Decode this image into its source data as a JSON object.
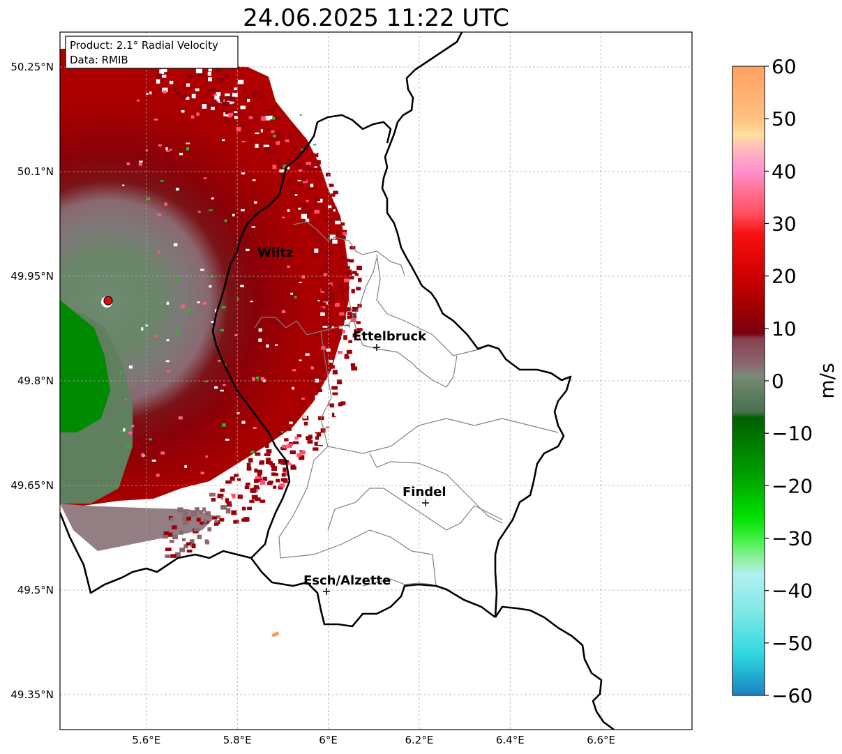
{
  "title": "24.06.2025 11:22 UTC",
  "info_box": {
    "product": "Product: 2.1° Radial Velocity",
    "data": "Data: RMIB"
  },
  "map": {
    "lon_range": [
      5.41,
      6.8
    ],
    "lat_range": [
      49.3,
      50.3
    ],
    "lon_ticks": [
      5.6,
      5.8,
      6.0,
      6.2,
      6.4,
      6.6
    ],
    "lon_tick_labels": [
      "5.6°E",
      "5.8°E",
      "6°E",
      "6.2°E",
      "6.4°E",
      "6.6°E"
    ],
    "lat_ticks": [
      49.35,
      49.5,
      49.65,
      49.8,
      49.95,
      50.1,
      50.25
    ],
    "lat_tick_labels": [
      "49.35°N",
      "49.5°N",
      "49.65°N",
      "49.8°N",
      "49.95°N",
      "50.1°N",
      "50.25°N"
    ],
    "grid": true,
    "radar_site": {
      "lon": 5.505,
      "lat": 49.914
    },
    "cities": [
      {
        "name": "Wiltz",
        "lon": 5.93,
        "lat": 49.966
      },
      {
        "name": "Ettelbruck",
        "lon": 6.104,
        "lat": 49.847
      },
      {
        "name": "Findel",
        "lon": 6.204,
        "lat": 49.627
      },
      {
        "name": "Esch/Alzette",
        "lon": 5.981,
        "lat": 49.496
      }
    ]
  },
  "colorbar": {
    "label": "m/s",
    "min": -60,
    "max": 60,
    "ticks": [
      60,
      50,
      40,
      30,
      20,
      10,
      0,
      -10,
      -20,
      -30,
      -40,
      -50,
      -60
    ],
    "tick_labels": [
      "60",
      "50",
      "40",
      "30",
      "20",
      "10",
      "0",
      "−10",
      "−20",
      "−30",
      "−40",
      "−50",
      "−60"
    ],
    "stops": [
      {
        "v": 60,
        "c": "#ffa060"
      },
      {
        "v": 55,
        "c": "#ffb070"
      },
      {
        "v": 50,
        "c": "#ffc080"
      },
      {
        "v": 47,
        "c": "#ffe0a0"
      },
      {
        "v": 44,
        "c": "#ffb8c0"
      },
      {
        "v": 40,
        "c": "#ff90d0"
      },
      {
        "v": 36,
        "c": "#ff7090"
      },
      {
        "v": 32,
        "c": "#ff5060"
      },
      {
        "v": 28,
        "c": "#f81010"
      },
      {
        "v": 20,
        "c": "#d00000"
      },
      {
        "v": 14,
        "c": "#a00000"
      },
      {
        "v": 9,
        "c": "#7a0010"
      },
      {
        "v": 8,
        "c": "#884050"
      },
      {
        "v": 3,
        "c": "#8a6870"
      },
      {
        "v": 1,
        "c": "#7a8a78"
      },
      {
        "v": -2,
        "c": "#608060"
      },
      {
        "v": -6,
        "c": "#4a7050"
      },
      {
        "v": -7,
        "c": "#006000"
      },
      {
        "v": -18,
        "c": "#00a000"
      },
      {
        "v": -26,
        "c": "#00e000"
      },
      {
        "v": -30,
        "c": "#40f040"
      },
      {
        "v": -34,
        "c": "#90f0a0"
      },
      {
        "v": -37,
        "c": "#b0f0f0"
      },
      {
        "v": -44,
        "c": "#80e8e8"
      },
      {
        "v": -52,
        "c": "#30d8e0"
      },
      {
        "v": -56,
        "c": "#20b0d0"
      },
      {
        "v": -60,
        "c": "#2080c0"
      }
    ]
  },
  "colors": {
    "approach_red": "#a80000",
    "recede_gray": "#867076",
    "recede_green": "#5f7f5f",
    "strong_green": "#00a000",
    "radar_marker": "#e01010"
  }
}
